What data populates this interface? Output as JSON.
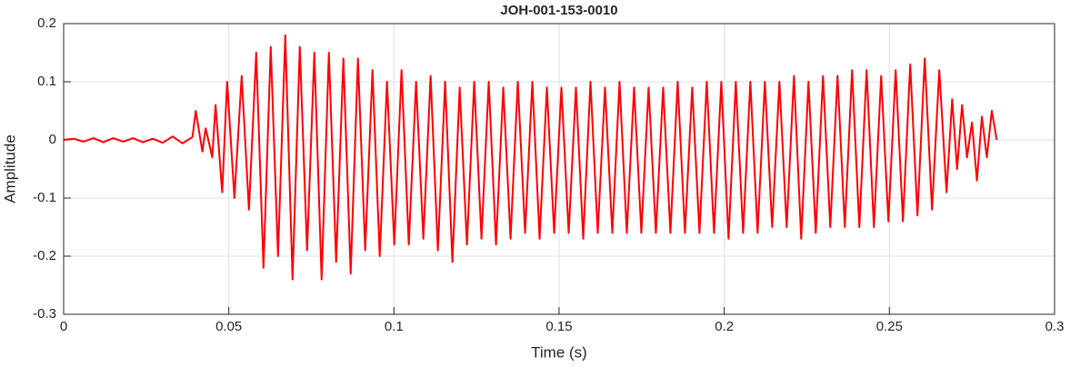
{
  "chart_data": {
    "type": "line",
    "title": "JOH-001-153-0010",
    "xlabel": "Time (s)",
    "ylabel": "Amplitude",
    "xlim": [
      0,
      0.3
    ],
    "xticks": [
      0,
      0.05,
      0.1,
      0.15,
      0.2,
      0.25,
      0.3
    ],
    "ylim": [
      -0.3,
      0.2
    ],
    "yticks": [
      -0.3,
      -0.2,
      -0.1,
      0,
      0.1,
      0.2
    ],
    "grid": true,
    "series": [
      {
        "color": "#ff0000",
        "x": [
          0,
          0.003,
          0.006,
          0.009,
          0.012,
          0.015,
          0.018,
          0.021,
          0.024,
          0.027,
          0.03,
          0.033,
          0.036,
          0.039,
          0.04,
          0.042,
          0.043,
          0.045,
          0.046,
          0.048,
          0.0495,
          0.0517,
          0.0539,
          0.0561,
          0.0583,
          0.0605,
          0.0627,
          0.0649,
          0.0671,
          0.0693,
          0.0715,
          0.0737,
          0.0759,
          0.0781,
          0.0803,
          0.0825,
          0.0847,
          0.0869,
          0.0891,
          0.0913,
          0.0935,
          0.0957,
          0.0979,
          0.1001,
          0.1023,
          0.1045,
          0.1067,
          0.1089,
          0.1111,
          0.1133,
          0.1155,
          0.1177,
          0.1199,
          0.1221,
          0.1243,
          0.1265,
          0.1287,
          0.1309,
          0.1331,
          0.1353,
          0.1375,
          0.1397,
          0.1419,
          0.1441,
          0.1463,
          0.1485,
          0.1507,
          0.1529,
          0.1551,
          0.1573,
          0.1595,
          0.1617,
          0.1639,
          0.1661,
          0.1683,
          0.1705,
          0.1727,
          0.1749,
          0.1771,
          0.1793,
          0.1815,
          0.1837,
          0.1859,
          0.1881,
          0.1903,
          0.1925,
          0.1947,
          0.1969,
          0.1991,
          0.2013,
          0.2035,
          0.2057,
          0.2079,
          0.2101,
          0.2123,
          0.2145,
          0.2167,
          0.2189,
          0.2211,
          0.2233,
          0.2255,
          0.2277,
          0.2299,
          0.2321,
          0.2343,
          0.2365,
          0.2387,
          0.2409,
          0.2431,
          0.2453,
          0.2475,
          0.2497,
          0.2519,
          0.2541,
          0.2563,
          0.2585,
          0.2607,
          0.2629,
          0.2651,
          0.2673,
          0.269,
          0.2705,
          0.272,
          0.2735,
          0.275,
          0.2765,
          0.278,
          0.2795,
          0.281,
          0.2825
        ],
        "values": [
          0,
          0.002,
          -0.003,
          0.003,
          -0.004,
          0.003,
          -0.003,
          0.003,
          -0.004,
          0.002,
          -0.005,
          0.006,
          -0.006,
          0.005,
          0.05,
          -0.02,
          0.02,
          -0.03,
          0.06,
          -0.09,
          0.1,
          -0.1,
          0.11,
          -0.12,
          0.15,
          -0.22,
          0.16,
          -0.2,
          0.18,
          -0.24,
          0.16,
          -0.19,
          0.15,
          -0.24,
          0.15,
          -0.21,
          0.14,
          -0.23,
          0.14,
          -0.19,
          0.12,
          -0.2,
          0.1,
          -0.18,
          0.12,
          -0.18,
          0.1,
          -0.17,
          0.11,
          -0.19,
          0.1,
          -0.21,
          0.09,
          -0.18,
          0.1,
          -0.17,
          0.1,
          -0.18,
          0.09,
          -0.17,
          0.1,
          -0.16,
          0.1,
          -0.17,
          0.09,
          -0.16,
          0.09,
          -0.16,
          0.09,
          -0.17,
          0.1,
          -0.16,
          0.09,
          -0.16,
          0.1,
          -0.16,
          0.09,
          -0.16,
          0.09,
          -0.16,
          0.09,
          -0.16,
          0.1,
          -0.16,
          0.09,
          -0.16,
          0.1,
          -0.16,
          0.1,
          -0.17,
          0.1,
          -0.16,
          0.1,
          -0.16,
          0.1,
          -0.15,
          0.1,
          -0.15,
          0.11,
          -0.17,
          0.1,
          -0.16,
          0.11,
          -0.15,
          0.11,
          -0.15,
          0.12,
          -0.15,
          0.12,
          -0.15,
          0.11,
          -0.14,
          0.12,
          -0.14,
          0.13,
          -0.13,
          0.14,
          -0.12,
          0.12,
          -0.09,
          0.07,
          -0.05,
          0.06,
          -0.03,
          0.03,
          -0.07,
          0.04,
          -0.03,
          0.05,
          0
        ]
      }
    ]
  }
}
